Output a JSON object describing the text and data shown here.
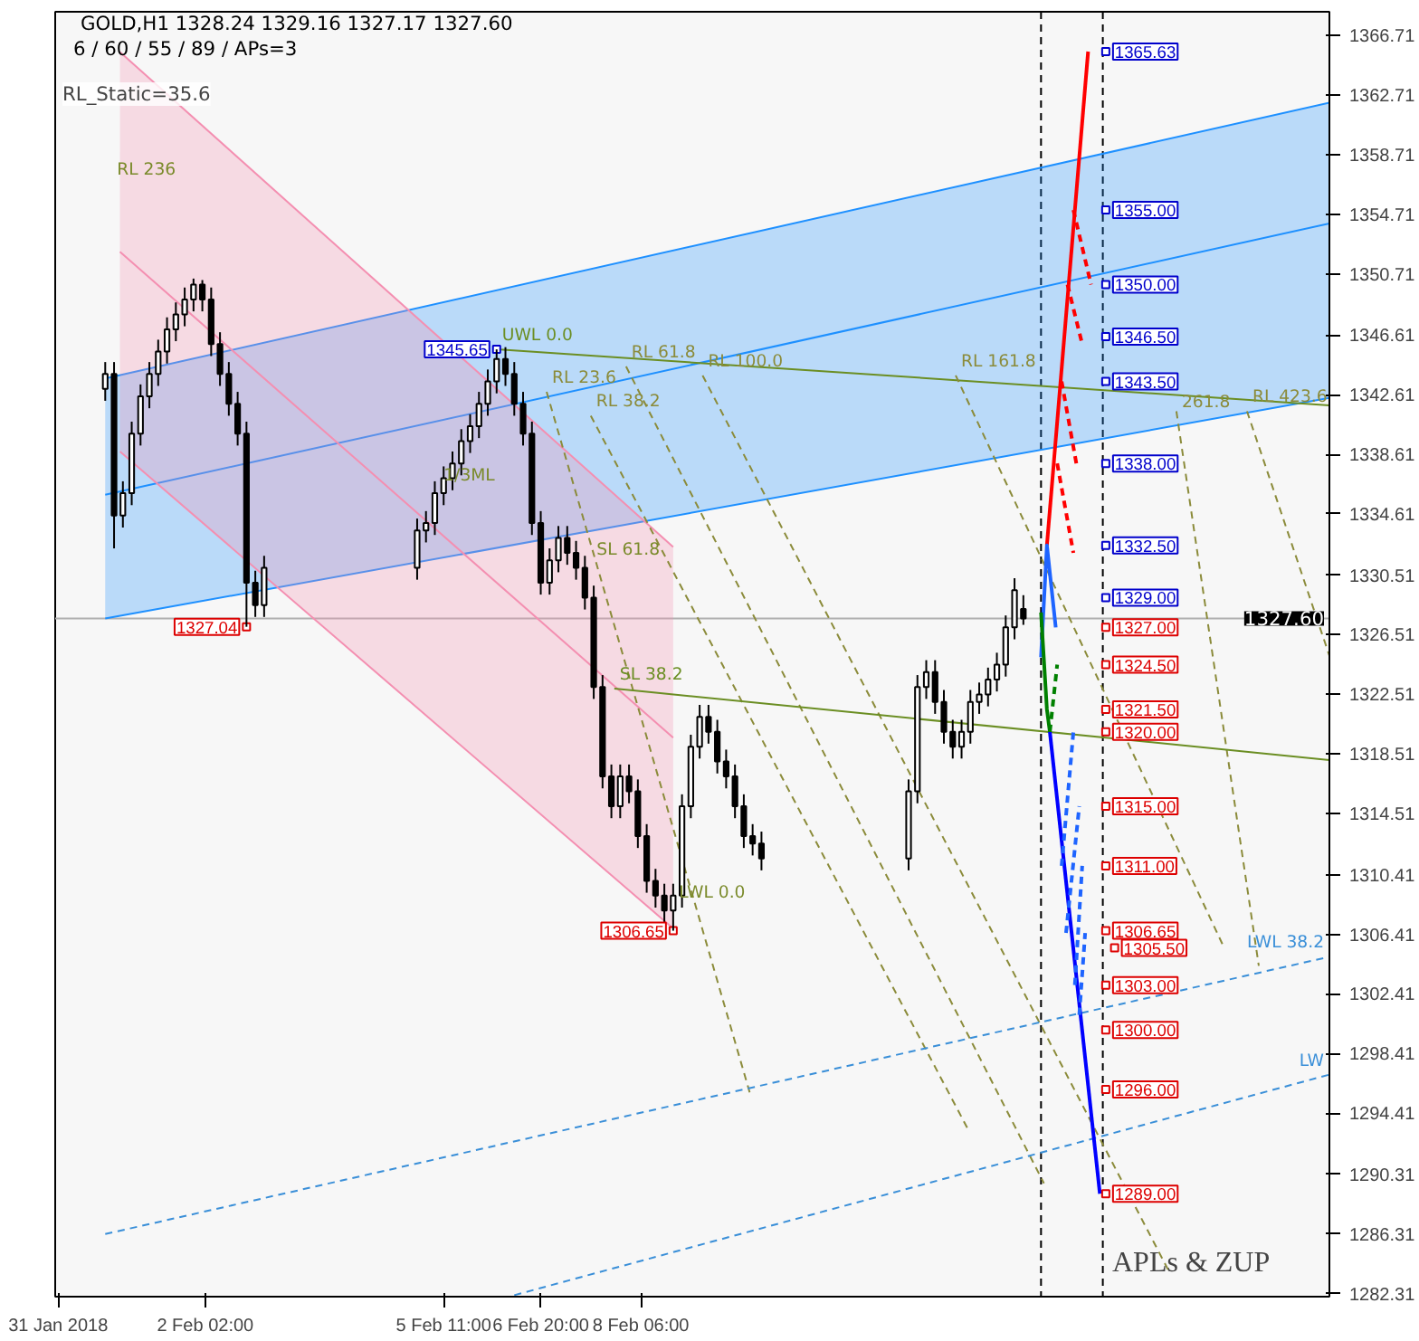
{
  "chart_data": {
    "type": "candlestick",
    "title": "GOLD,H1  1328.24 1329.16 1327.17 1327.60",
    "subtitle": "6 / 60 / 55 / 89 / APs=3",
    "x": [
      "2018-01-31T16:00",
      "2018-01-31T19:00",
      "2018-01-31T22:00",
      "2018-02-01T01:00",
      "2018-02-01T04:00",
      "2018-02-01T07:00",
      "2018-02-01T10:00",
      "2018-02-01T13:00",
      "2018-02-01T16:00",
      "2018-02-01T19:00",
      "2018-02-01T22:00",
      "2018-02-02T01:00",
      "2018-02-02T04:00",
      "2018-02-02T07:00",
      "2018-02-02T10:00",
      "2018-02-02T13:00",
      "2018-02-02T16:00",
      "2018-02-02T19:00",
      "2018-02-02T22:00",
      "2018-02-05T02:00",
      "2018-02-05T05:00",
      "2018-02-05T08:00",
      "2018-02-05T11:00",
      "2018-02-05T14:00",
      "2018-02-05T17:00",
      "2018-02-05T20:00",
      "2018-02-05T23:00",
      "2018-02-06T02:00",
      "2018-02-06T05:00",
      "2018-02-06T08:00",
      "2018-02-06T11:00",
      "2018-02-06T14:00",
      "2018-02-06T17:00",
      "2018-02-06T20:00",
      "2018-02-06T23:00",
      "2018-02-07T02:00",
      "2018-02-07T05:00",
      "2018-02-07T08:00",
      "2018-02-07T11:00",
      "2018-02-07T14:00",
      "2018-02-07T17:00",
      "2018-02-07T20:00",
      "2018-02-07T23:00",
      "2018-02-08T02:00",
      "2018-02-08T05:00",
      "2018-02-08T08:00",
      "2018-02-08T11:00",
      "2018-02-08T14:00",
      "2018-02-08T17:00",
      "2018-02-08T20:00",
      "2018-02-08T23:00",
      "2018-02-09T02:00",
      "2018-02-09T05:00",
      "2018-02-09T08:00",
      "2018-02-09T11:00",
      "2018-02-09T14:00",
      "2018-02-09T17:00",
      "2018-02-09T20:00",
      "2018-02-09T23:00",
      "2018-02-12T01:00",
      "2018-02-12T04:00",
      "2018-02-12T07:00",
      "2018-02-12T10:00",
      "2018-02-12T13:00",
      "2018-02-12T16:00",
      "2018-02-12T19:00",
      "2018-02-12T22:00",
      "2018-02-13T01:00",
      "2018-02-13T04:00",
      "2018-02-13T07:00",
      "2018-02-13T10:00",
      "2018-02-13T13:00",
      "2018-02-13T16:00"
    ],
    "ohlc": [
      [
        1343,
        1344.8,
        1342.2,
        1344
      ],
      [
        1344,
        1344.8,
        1332.3,
        1334.5
      ],
      [
        1334.5,
        1336.8,
        1333.7,
        1336
      ],
      [
        1336,
        1340.8,
        1335.2,
        1340
      ],
      [
        1340,
        1343.3,
        1339.2,
        1342.5
      ],
      [
        1342.5,
        1344.8,
        1341.7,
        1344
      ],
      [
        1344,
        1346.3,
        1343.2,
        1345.5
      ],
      [
        1345.5,
        1347.8,
        1344.7,
        1347
      ],
      [
        1347,
        1348.8,
        1346.2,
        1348
      ],
      [
        1348,
        1349.8,
        1347.2,
        1349
      ],
      [
        1349,
        1350.4,
        1348.2,
        1350
      ],
      [
        1350,
        1350.3,
        1348.2,
        1349
      ],
      [
        1349,
        1349.8,
        1345.2,
        1346
      ],
      [
        1346,
        1346.8,
        1343.2,
        1344
      ],
      [
        1344,
        1344.8,
        1341.2,
        1342
      ],
      [
        1342,
        1342.8,
        1339.2,
        1340
      ],
      [
        1340,
        1340.8,
        1327.04,
        1330
      ],
      [
        1330,
        1330.8,
        1327.7,
        1328.5
      ],
      [
        1328.5,
        1331.8,
        1327.7,
        1331
      ],
      [
        1331,
        1334.3,
        1330.2,
        1333.5
      ],
      [
        1333.5,
        1334.8,
        1332.7,
        1334
      ],
      [
        1334,
        1336.8,
        1333.2,
        1336
      ],
      [
        1336,
        1337.8,
        1335.2,
        1337
      ],
      [
        1337,
        1338.8,
        1336.2,
        1338
      ],
      [
        1338,
        1340.3,
        1337.2,
        1339.5
      ],
      [
        1339.5,
        1341.3,
        1338.7,
        1340.5
      ],
      [
        1340.5,
        1342.8,
        1339.7,
        1342
      ],
      [
        1342,
        1344.3,
        1341.2,
        1343.5
      ],
      [
        1343.5,
        1345.65,
        1342.7,
        1345
      ],
      [
        1345,
        1345.8,
        1343.2,
        1344
      ],
      [
        1344,
        1344.8,
        1341.2,
        1342
      ],
      [
        1342,
        1342.8,
        1339.2,
        1340
      ],
      [
        1340,
        1340.8,
        1333.2,
        1334
      ],
      [
        1334,
        1334.8,
        1329.2,
        1330
      ],
      [
        1330,
        1332.3,
        1329.2,
        1331.5
      ],
      [
        1331.5,
        1333.8,
        1330.7,
        1333
      ],
      [
        1333,
        1333.8,
        1331.2,
        1332
      ],
      [
        1332,
        1332.8,
        1330.2,
        1331
      ],
      [
        1331,
        1331.8,
        1328.2,
        1329
      ],
      [
        1329,
        1329.8,
        1322.2,
        1323
      ],
      [
        1323,
        1323.8,
        1316.2,
        1317
      ],
      [
        1317,
        1317.8,
        1314.2,
        1315
      ],
      [
        1315,
        1317.8,
        1314.2,
        1317
      ],
      [
        1317,
        1317.8,
        1315.2,
        1316
      ],
      [
        1316,
        1316.8,
        1312.2,
        1313
      ],
      [
        1313,
        1313.8,
        1309.2,
        1310
      ],
      [
        1310,
        1310.8,
        1308.2,
        1309
      ],
      [
        1309,
        1309.8,
        1307.2,
        1308
      ],
      [
        1308,
        1309.8,
        1306.65,
        1309
      ],
      [
        1309,
        1315.8,
        1308.2,
        1315
      ],
      [
        1315,
        1319.8,
        1314.2,
        1319
      ],
      [
        1319,
        1321.8,
        1318.2,
        1321
      ],
      [
        1321,
        1321.8,
        1319.2,
        1320
      ],
      [
        1320,
        1320.8,
        1317.2,
        1318
      ],
      [
        1318,
        1318.8,
        1316.2,
        1317
      ],
      [
        1317,
        1317.8,
        1314.2,
        1315
      ],
      [
        1315,
        1315.8,
        1312.2,
        1313
      ],
      [
        1313,
        1313.8,
        1311.7,
        1312.5
      ],
      [
        1312.5,
        1313.3,
        1310.7,
        1311.5
      ],
      [
        1311.5,
        1316.8,
        1310.7,
        1316
      ],
      [
        1316,
        1323.8,
        1315.2,
        1323
      ],
      [
        1323,
        1324.8,
        1322.2,
        1324
      ],
      [
        1324,
        1324.8,
        1321.2,
        1322
      ],
      [
        1322,
        1322.8,
        1319.2,
        1320
      ],
      [
        1320,
        1320.8,
        1318.2,
        1319
      ],
      [
        1319,
        1320.8,
        1318.2,
        1320
      ],
      [
        1320,
        1322.8,
        1319.2,
        1322
      ],
      [
        1322,
        1323.3,
        1321.2,
        1322.5
      ],
      [
        1322.5,
        1324.3,
        1321.7,
        1323.5
      ],
      [
        1323.5,
        1325.3,
        1322.7,
        1324.5
      ],
      [
        1324.5,
        1327.8,
        1323.7,
        1327
      ],
      [
        1327,
        1330.3,
        1326.2,
        1329.5
      ],
      [
        1328.24,
        1329.16,
        1327.17,
        1327.6
      ]
    ],
    "series": [
      {
        "type": "line",
        "color": "#1e90ff",
        "x": [
          "2018-01-31T16:00",
          "2018-02-18T00:00"
        ],
        "values": [
          1335.9,
          1354.1
        ],
        "lower": [
          1327.6,
          1342.4
        ],
        "upper": [
          1343.7,
          1362.2
        ]
      },
      {
        "type": "line",
        "color": "#1e90ff",
        "x": [
          "2018-01-31T16:00",
          "2018-02-18T00:00"
        ],
        "values": [
          1343.7,
          1362.2
        ]
      },
      {
        "type": "line",
        "color": "#1e90ff",
        "x": [
          "2018-01-31T16:00",
          "2018-02-18T00:00"
        ],
        "values": [
          1327.6,
          1342.4
        ]
      },
      {
        "type": "line",
        "color": "#f48fb1",
        "x": [
          "2018-01-31T21:00",
          "2018-02-08T17:00"
        ],
        "values": [
          1352.2,
          1319.6
        ],
        "lower": [
          1338.8,
          1306.8
        ],
        "upper": [
          1365.6,
          1332.4
        ]
      },
      {
        "type": "line",
        "color": "#f48fb1",
        "x": [
          "2018-01-31T21:00",
          "2018-02-08T17:00"
        ],
        "values": [
          1365.6,
          1332.4
        ]
      },
      {
        "type": "line",
        "color": "#f48fb1",
        "x": [
          "2018-01-31T21:00",
          "2018-02-08T17:00"
        ],
        "values": [
          1338.8,
          1306.8
        ]
      },
      {
        "type": "line",
        "name": "UWL 0.0",
        "color": "#6b8e23",
        "x": [
          "2018-02-06T05:00",
          "2018-02-18T00:00"
        ],
        "values": [
          1345.65,
          1341.9
        ]
      },
      {
        "type": "line",
        "name": "RL 23.6",
        "color": "#8b8b3a",
        "line_style": "dashed",
        "x": [
          "2018-02-06T22:00",
          "2018-02-09T19:00"
        ],
        "values": [
          1342.8,
          1295.8
        ]
      },
      {
        "type": "line",
        "name": "RL 38.2",
        "color": "#8b8b3a",
        "line_style": "dashed",
        "x": [
          "2018-02-07T13:00",
          "2018-02-12T21:00"
        ],
        "values": [
          1341.2,
          1293.4
        ]
      },
      {
        "type": "line",
        "name": "RL 61.8",
        "color": "#8b8b3a",
        "line_style": "dashed",
        "x": [
          "2018-02-08T01:00",
          "2018-02-13T23:00"
        ],
        "values": [
          1344.5,
          1289.7
        ]
      },
      {
        "type": "line",
        "name": "RL 100.0",
        "color": "#8b8b3a",
        "line_style": "dashed",
        "x": [
          "2018-02-09T03:00",
          "2018-02-15T18:00"
        ],
        "values": [
          1343.9,
          1283.6
        ]
      },
      {
        "type": "line",
        "name": "RL 161.8",
        "color": "#8b8b3a",
        "line_style": "dashed",
        "x": [
          "2018-02-12T17:00",
          "2018-02-16T12:00"
        ],
        "values": [
          1343.9,
          1305.6
        ]
      },
      {
        "type": "line",
        "name": "261.8",
        "color": "#8b8b3a",
        "line_style": "dashed",
        "x": [
          "2018-02-15T20:00",
          "2018-02-17T00:00"
        ],
        "values": [
          1341.5,
          1304.3
        ]
      },
      {
        "type": "line",
        "name": "RL 423.6",
        "color": "#8b8b3a",
        "line_style": "dashed",
        "x": [
          "2018-02-16T20:00",
          "2018-02-18T00:00"
        ],
        "values": [
          1341.5,
          1325.1
        ]
      },
      {
        "type": "line",
        "name": "SL 38.2",
        "color": "#6b8e23",
        "x": [
          "2018-02-07T21:00",
          "2018-02-18T00:00"
        ],
        "values": [
          1322.9,
          1318.1
        ]
      },
      {
        "type": "line",
        "name": "LWL 38.2",
        "color": "#3a8fd8",
        "line_style": "dashed",
        "x": [
          "2018-01-31T16:00",
          "2018-02-18T00:00"
        ],
        "values": [
          1286.3,
          1304.9
        ]
      },
      {
        "type": "line",
        "name": "LW",
        "color": "#3a8fd8",
        "line_style": "dashed",
        "x": [
          "2018-02-06T11:00",
          "2018-02-18T00:00"
        ],
        "values": [
          1282.2,
          1297.0
        ]
      },
      {
        "type": "line",
        "color": "#ff0000",
        "x": [
          "2018-02-14T00:00",
          "2018-02-14T14:00"
        ],
        "values": [
          1332.5,
          1365.63
        ]
      },
      {
        "type": "line",
        "color": "#ff0000",
        "line_style": "dashed",
        "x": [
          "2018-02-14T09:00",
          "2018-02-14T15:00"
        ],
        "values": [
          1355,
          1350
        ]
      },
      {
        "type": "line",
        "color": "#ff0000",
        "line_style": "dashed",
        "x": [
          "2018-02-14T07:00",
          "2018-02-14T12:00"
        ],
        "values": [
          1350,
          1346
        ]
      },
      {
        "type": "line",
        "color": "#ff0000",
        "line_style": "dashed",
        "x": [
          "2018-02-14T05:00",
          "2018-02-14T10:00"
        ],
        "values": [
          1343.5,
          1338
        ]
      },
      {
        "type": "line",
        "color": "#ff0000",
        "line_style": "dashed",
        "x": [
          "2018-02-14T03:30",
          "2018-02-14T09:00"
        ],
        "values": [
          1338,
          1332
        ]
      },
      {
        "type": "line",
        "color": "#0000ff",
        "x": [
          "2018-02-14T01:00",
          "2018-02-14T18:00"
        ],
        "values": [
          1320,
          1289
        ]
      },
      {
        "type": "line",
        "color": "#1e64ff",
        "x": [
          "2018-02-13T22:00",
          "2018-02-14T00:00",
          "2018-02-14T03:00"
        ],
        "values": [
          1325,
          1332.5,
          1327
        ]
      },
      {
        "type": "line",
        "color": "#1e64ff",
        "line_style": "dashed",
        "x": [
          "2018-02-14T05:00",
          "2018-02-14T09:00"
        ],
        "values": [
          1311,
          1320
        ]
      },
      {
        "type": "line",
        "color": "#1e64ff",
        "line_style": "dashed",
        "x": [
          "2018-02-14T06:30",
          "2018-02-14T11:00"
        ],
        "values": [
          1306.5,
          1315
        ]
      },
      {
        "type": "line",
        "color": "#1e64ff",
        "line_style": "dashed",
        "x": [
          "2018-02-14T09:30",
          "2018-02-14T12:00"
        ],
        "values": [
          1303,
          1311
        ]
      },
      {
        "type": "line",
        "color": "#1e64ff",
        "line_style": "dashed",
        "x": [
          "2018-02-14T11:00",
          "2018-02-14T13:00"
        ],
        "values": [
          1301,
          1306.5
        ]
      },
      {
        "type": "line",
        "color": "#008000",
        "x": [
          "2018-02-13T22:00",
          "2018-02-14T00:00",
          "2018-02-14T01:00"
        ],
        "values": [
          1328,
          1321.5,
          1320
        ]
      },
      {
        "type": "line",
        "color": "#008000",
        "line_style": "dashed",
        "x": [
          "2018-02-14T01:00",
          "2018-02-14T03:30"
        ],
        "values": [
          1320,
          1324.5
        ]
      },
      {
        "type": "scatter",
        "marker": "square",
        "color": "#0000cc",
        "x": [
          "2018-02-14T20:00",
          "2018-02-14T20:00",
          "2018-02-14T20:00",
          "2018-02-14T20:00",
          "2018-02-14T20:00",
          "2018-02-14T20:00",
          "2018-02-14T20:00",
          "2018-02-14T20:00",
          "2018-02-06T05:00"
        ],
        "values": [
          1365.63,
          1355,
          1350,
          1346.5,
          1343.5,
          1338,
          1332.5,
          1329,
          1345.65
        ],
        "value_labels": [
          "1365.63",
          "1355.00",
          "1350.00",
          "1346.50",
          "1343.50",
          "1338.00",
          "1332.50",
          "1329.00",
          "1345.65"
        ]
      },
      {
        "type": "scatter",
        "marker": "square",
        "color": "#dd0000",
        "x": [
          "2018-02-14T20:00",
          "2018-02-14T20:00",
          "2018-02-14T20:00",
          "2018-02-14T20:00",
          "2018-02-14T20:00",
          "2018-02-14T20:00",
          "2018-02-14T20:00",
          "2018-02-14T23:00",
          "2018-02-14T20:00",
          "2018-02-14T20:00",
          "2018-02-14T20:00",
          "2018-02-14T20:00",
          "2018-02-02T16:00",
          "2018-02-08T17:00"
        ],
        "values": [
          1327,
          1324.5,
          1321.5,
          1320,
          1315,
          1311,
          1306.65,
          1305.5,
          1303,
          1300,
          1296,
          1289,
          1327.04,
          1306.65
        ],
        "value_labels": [
          "1327.00",
          "1324.50",
          "1321.50",
          "1320.00",
          "1315.00",
          "1311.00",
          "1306.65",
          "1305.50",
          "1303.00",
          "1300.00",
          "1296.00",
          "1289.00",
          "1327.04",
          "1306.65"
        ]
      }
    ],
    "ref_lines": [
      {
        "axis": "x",
        "value": "2018-02-13T22:00",
        "color": "#000000",
        "line_style": "dashed"
      },
      {
        "axis": "x",
        "value": "2018-02-14T19:00",
        "color": "#000000",
        "line_style": "dashed"
      },
      {
        "axis": "y",
        "value": 1327.6,
        "label": "1327.60",
        "color": "#b0b0b0"
      }
    ],
    "annotations": [
      "RL_Static=35.6",
      "APLs & ZUP",
      {
        "text": "RL 236",
        "x": "2018-01-31T20:00",
        "y": 1357
      },
      {
        "text": "1/3ML",
        "x": "2018-02-05T11:00",
        "y": 1336.5
      },
      {
        "text": "SL 61.8",
        "x": "2018-02-07T15:00",
        "y": 1331.5
      },
      {
        "text": "LWL 0.0",
        "x": "2018-02-08T19:00",
        "y": 1308.5
      }
    ],
    "xlim": [
      "2018-01-30T23:00",
      "2018-02-18T00:00"
    ],
    "ylim": [
      1282.1,
      1368.3
    ],
    "xticks": [
      {
        "value": "2018-01-31T00:00",
        "label": "31 Jan 2018"
      },
      {
        "value": "2018-02-02T02:00",
        "label": "2 Feb 02:00"
      },
      {
        "value": "2018-02-05T11:00",
        "label": "5 Feb 11:00"
      },
      {
        "value": "2018-02-06T20:00",
        "label": "6 Feb 20:00"
      },
      {
        "value": "2018-02-08T06:00",
        "label": "8 Feb 06:00"
      }
    ],
    "yticks": [
      1366.71,
      1362.71,
      1358.71,
      1354.71,
      1350.71,
      1346.61,
      1342.61,
      1338.61,
      1334.61,
      1330.51,
      1326.51,
      1322.51,
      1318.51,
      1314.51,
      1310.41,
      1306.41,
      1302.41,
      1298.41,
      1294.41,
      1290.31,
      1286.31,
      1282.31
    ]
  }
}
